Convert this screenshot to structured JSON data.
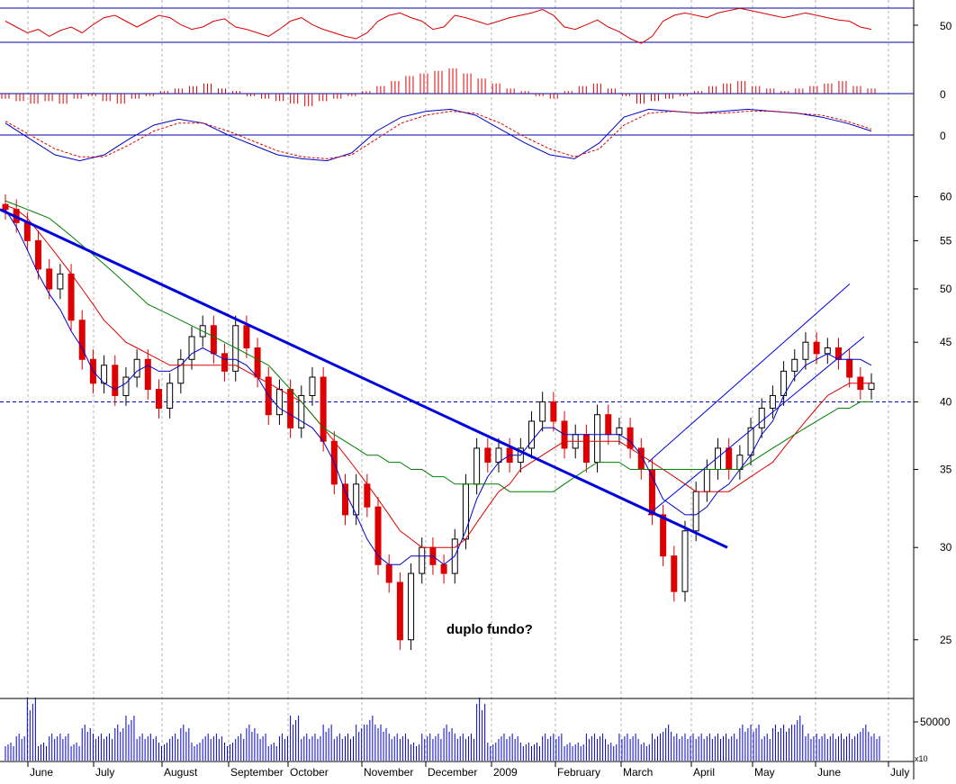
{
  "chart_data": {
    "type": "line",
    "annotation": "duplo fundo?",
    "volume_multiplier_label": "x10",
    "months": [
      "June",
      "July",
      "August",
      "September",
      "October",
      "November",
      "December",
      "2009",
      "February",
      "March",
      "April",
      "May",
      "June",
      "July"
    ],
    "price": {
      "type": "candlestick",
      "scale": "log",
      "ylim": [
        22.5,
        62
      ],
      "yticks": [
        60,
        55,
        50,
        45,
        40,
        35,
        30,
        25
      ],
      "reference_line": 40,
      "close": [
        58.5,
        57.0,
        55.0,
        52.0,
        50.0,
        51.5,
        47.0,
        43.5,
        41.5,
        43.0,
        40.5,
        42.0,
        43.5,
        41.0,
        39.5,
        41.5,
        43.5,
        45.5,
        46.5,
        44.0,
        42.5,
        46.5,
        44.5,
        42.0,
        39.0,
        41.0,
        38.0,
        40.5,
        42.0,
        37.0,
        34.0,
        32.0,
        34.0,
        32.5,
        29.0,
        28.0,
        25.0,
        28.5,
        30.0,
        29.0,
        28.5,
        30.5,
        34.0,
        36.5,
        35.5,
        36.5,
        35.5,
        36.5,
        38.5,
        40.0,
        38.5,
        36.5,
        37.5,
        35.5,
        39.0,
        37.5,
        38.0,
        36.5,
        35.0,
        32.0,
        29.5,
        27.5,
        31.0,
        33.5,
        35.0,
        36.5,
        35.0,
        36.0,
        38.0,
        39.5,
        40.5,
        42.5,
        43.5,
        45.0,
        44.0,
        44.5,
        43.5,
        42.0,
        41.0,
        41.5
      ],
      "trendline": {
        "from": [
          "June",
          58.5
        ],
        "to": [
          "April",
          30.0
        ],
        "color": "#0000dd"
      },
      "channel_upper": {
        "from": [
          "March",
          35.5
        ],
        "to": [
          "June",
          50.5
        ]
      },
      "channel_lower": {
        "from": [
          "March",
          32.0
        ],
        "to": [
          "June",
          45.5
        ]
      },
      "moving_averages": [
        {
          "color": "#0000cc",
          "values": [
            58.5,
            56.5,
            54.0,
            51.5,
            49.5,
            48.0,
            46.0,
            44.5,
            42.5,
            41.5,
            41.0,
            41.5,
            42.5,
            43.0,
            42.5,
            42.5,
            43.0,
            44.0,
            44.5,
            44.0,
            43.5,
            43.5,
            43.0,
            42.0,
            40.5,
            39.5,
            39.0,
            38.5,
            38.0,
            37.0,
            35.5,
            33.5,
            32.0,
            30.5,
            29.5,
            29.0,
            29.0,
            29.5,
            29.5,
            29.5,
            29.0,
            29.5,
            31.0,
            33.0,
            34.5,
            35.5,
            36.0,
            36.0,
            37.0,
            38.0,
            38.0,
            37.5,
            37.5,
            37.5,
            37.5,
            37.5,
            37.5,
            37.0,
            36.0,
            34.5,
            33.0,
            32.5,
            32.0,
            32.0,
            32.5,
            33.5,
            34.0,
            35.0,
            36.0,
            37.5,
            38.5,
            40.5,
            42.0,
            43.0,
            43.5,
            44.0,
            43.5,
            43.5,
            43.5,
            43.0
          ]
        },
        {
          "color": "#dd0000",
          "values": [
            59.0,
            58.5,
            57.5,
            56.0,
            54.5,
            53.0,
            51.5,
            50.0,
            48.5,
            47.0,
            46.0,
            45.0,
            44.5,
            44.0,
            43.5,
            43.0,
            43.0,
            43.0,
            43.0,
            43.0,
            43.0,
            43.0,
            42.5,
            42.0,
            41.5,
            41.0,
            40.5,
            40.0,
            39.0,
            38.0,
            37.0,
            36.0,
            35.0,
            34.0,
            33.0,
            32.0,
            31.0,
            30.5,
            30.0,
            30.0,
            30.0,
            30.0,
            30.5,
            31.5,
            32.5,
            33.5,
            34.0,
            35.0,
            35.5,
            36.0,
            36.5,
            37.0,
            37.0,
            37.0,
            37.0,
            37.0,
            37.0,
            36.5,
            36.0,
            35.5,
            35.0,
            34.5,
            34.0,
            33.5,
            33.5,
            33.5,
            33.5,
            34.0,
            34.5,
            35.0,
            35.5,
            36.5,
            37.5,
            38.5,
            39.5,
            40.5,
            41.0,
            41.5,
            41.5,
            41.5
          ]
        },
        {
          "color": "#008000",
          "values": [
            59.5,
            59.0,
            58.5,
            58.0,
            57.5,
            56.5,
            55.5,
            54.5,
            53.5,
            52.5,
            51.5,
            50.5,
            49.5,
            48.5,
            48.0,
            47.5,
            47.0,
            46.5,
            46.0,
            45.5,
            45.0,
            44.5,
            44.0,
            43.5,
            43.0,
            42.0,
            41.0,
            40.0,
            39.0,
            38.0,
            37.5,
            37.0,
            36.5,
            36.0,
            36.0,
            35.5,
            35.5,
            35.0,
            35.0,
            34.5,
            34.5,
            34.0,
            34.0,
            34.0,
            34.0,
            34.0,
            33.5,
            33.5,
            33.5,
            33.5,
            33.5,
            34.0,
            34.5,
            35.0,
            35.5,
            35.5,
            35.5,
            35.0,
            35.0,
            35.0,
            35.0,
            35.0,
            35.0,
            35.0,
            35.0,
            35.0,
            35.0,
            35.0,
            35.5,
            36.0,
            36.5,
            37.0,
            37.5,
            38.0,
            38.5,
            39.0,
            39.5,
            39.5,
            40.0,
            40.0
          ]
        }
      ]
    },
    "rsi": {
      "ytick": 50,
      "levels": [
        "upper",
        "lower"
      ],
      "values": [
        55,
        50,
        45,
        48,
        42,
        47,
        50,
        45,
        52,
        58,
        60,
        55,
        50,
        55,
        60,
        58,
        52,
        48,
        50,
        55,
        57,
        50,
        48,
        45,
        42,
        48,
        55,
        58,
        52,
        48,
        45,
        42,
        40,
        45,
        55,
        60,
        62,
        58,
        55,
        48,
        50,
        60,
        58,
        55,
        52,
        55,
        58,
        60,
        62,
        65,
        60,
        50,
        48,
        52,
        56,
        50,
        46,
        40,
        36,
        42,
        55,
        60,
        62,
        60,
        58,
        62,
        64,
        66,
        64,
        62,
        60,
        58,
        60,
        62,
        60,
        58,
        56,
        55,
        50,
        48
      ]
    },
    "histogram": {
      "ytick": 0,
      "values": [
        -2,
        -3,
        -4,
        -3,
        -4,
        -2,
        -1,
        -3,
        -4,
        -2,
        -1,
        1,
        2,
        3,
        4,
        2,
        1,
        -1,
        -2,
        -3,
        -4,
        -5,
        -3,
        -2,
        -1,
        1,
        3,
        5,
        7,
        8,
        9,
        10,
        8,
        6,
        4,
        2,
        1,
        -1,
        -2,
        1,
        3,
        4,
        2,
        -1,
        -4,
        -3,
        -2,
        -1,
        1,
        3,
        4,
        5,
        3,
        2,
        1,
        2,
        3,
        4,
        5,
        3,
        2
      ]
    },
    "macd": {
      "ytick": 0,
      "macd_color": "#0000cc",
      "signal_color": "#dd0000",
      "macd": [
        0.6,
        -0.2,
        -1.0,
        -1.3,
        -1.0,
        -0.2,
        0.5,
        0.8,
        0.6,
        0.0,
        -0.5,
        -1.0,
        -1.2,
        -1.3,
        -0.9,
        0.2,
        0.9,
        1.2,
        1.3,
        1.0,
        0.3,
        -0.4,
        -1.0,
        -1.2,
        -0.4,
        0.9,
        1.3,
        1.2,
        1.1,
        1.2,
        1.3,
        1.2,
        1.1,
        0.9,
        0.6,
        0.2
      ],
      "signal": [
        0.7,
        0.0,
        -0.7,
        -1.1,
        -1.1,
        -0.5,
        0.2,
        0.6,
        0.6,
        0.2,
        -0.3,
        -0.8,
        -1.1,
        -1.2,
        -1.0,
        -0.2,
        0.6,
        1.0,
        1.2,
        1.1,
        0.6,
        -0.1,
        -0.7,
        -1.1,
        -0.7,
        0.5,
        1.1,
        1.2,
        1.1,
        1.1,
        1.2,
        1.2,
        1.1,
        1.0,
        0.7,
        0.3
      ]
    },
    "volume": {
      "ytick": 50000,
      "values": [
        2,
        3,
        7,
        2,
        3,
        3,
        2,
        4,
        3,
        3,
        4,
        5,
        3,
        3,
        2,
        3,
        4,
        2,
        3,
        3,
        2,
        3,
        4,
        3,
        2,
        3,
        5,
        3,
        3,
        4,
        3,
        3,
        4,
        5,
        4,
        3,
        3,
        2,
        3,
        3,
        4,
        3,
        3,
        7,
        2,
        3,
        3,
        2,
        2,
        3,
        3,
        2,
        2,
        3,
        3,
        2,
        3,
        3,
        2,
        3,
        4,
        3,
        3,
        3,
        3,
        3,
        3,
        4,
        4,
        3,
        4,
        4,
        5,
        3,
        3,
        3,
        3,
        3,
        4,
        3
      ]
    }
  }
}
